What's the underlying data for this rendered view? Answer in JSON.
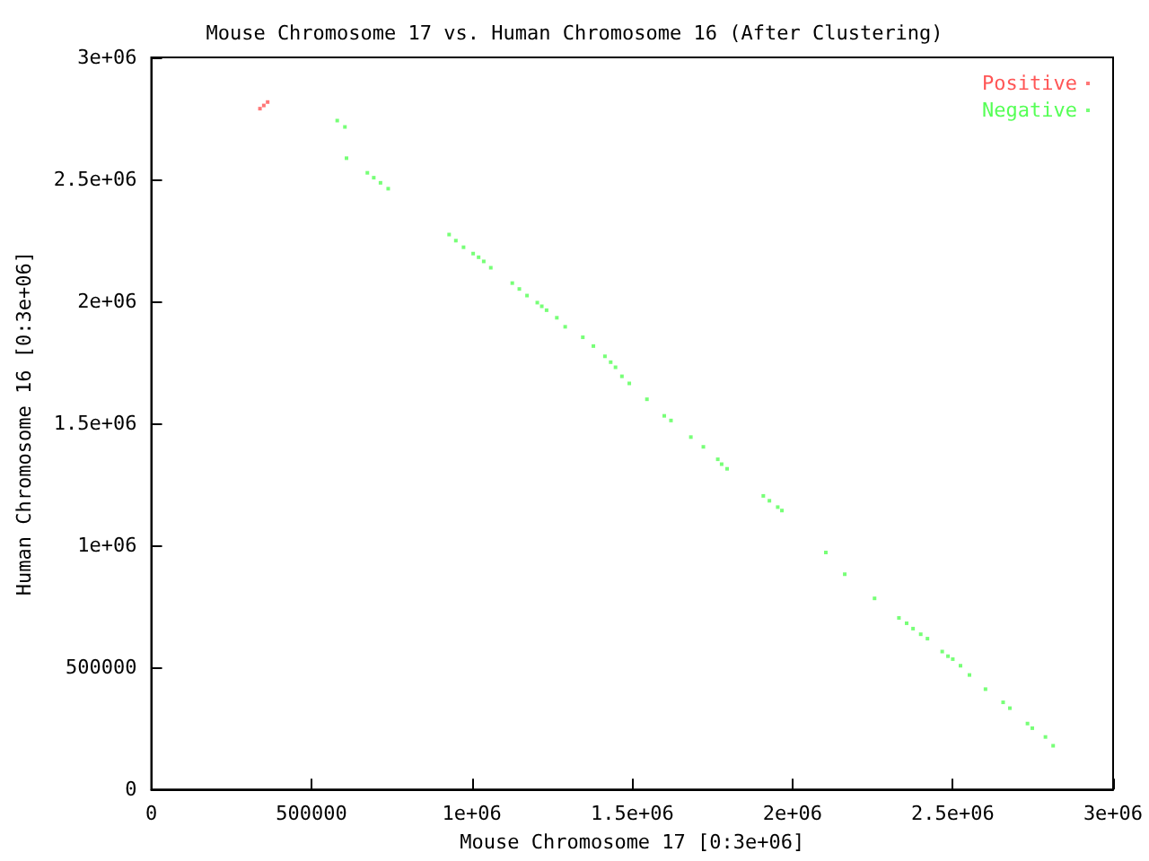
{
  "chart_data": {
    "type": "scatter",
    "title": "Mouse Chromosome 17 vs. Human Chromosome 16 (After Clustering)",
    "xlabel": "Mouse Chromosome 17 [0:3e+06]",
    "ylabel": "Human Chromosome 16 [0:3e+06]",
    "xlim": [
      0,
      3000000
    ],
    "ylim": [
      0,
      3000000
    ],
    "xticks": [
      0,
      500000,
      {
        "value": 1000000,
        "label": "1e+06"
      },
      {
        "value": 1500000,
        "label": "1.5e+06"
      },
      {
        "value": 2000000,
        "label": "2e+06"
      },
      {
        "value": 2500000,
        "label": "2.5e+06"
      },
      {
        "value": 3000000,
        "label": "3e+06"
      }
    ],
    "yticks": [
      0,
      500000,
      {
        "value": 1000000,
        "label": "1e+06"
      },
      {
        "value": 1500000,
        "label": "1.5e+06"
      },
      {
        "value": 2000000,
        "label": "2e+06"
      },
      {
        "value": 2500000,
        "label": "2.5e+06"
      },
      {
        "value": 3000000,
        "label": "3e+06"
      }
    ],
    "grid": false,
    "legend": "top right",
    "marker": "square",
    "series": [
      {
        "name": "Positive",
        "color": "#ff5555",
        "x": [
          339000,
          351000,
          363000
        ],
        "values": [
          2790000,
          2803000,
          2817000
        ]
      },
      {
        "name": "Negative",
        "color": "#55ff55",
        "x": [
          580000,
          604000,
          609000,
          674000,
          694000,
          715000,
          739000,
          929000,
          950000,
          974000,
          1004000,
          1021000,
          1037000,
          1059000,
          1126000,
          1148000,
          1172000,
          1204000,
          1218000,
          1233000,
          1265000,
          1291000,
          1346000,
          1379000,
          1415000,
          1433000,
          1448000,
          1468000,
          1491000,
          1546000,
          1600000,
          1621000,
          1683000,
          1722000,
          1767000,
          1779000,
          1796000,
          1909000,
          1928000,
          1954000,
          1967000,
          2104000,
          2163000,
          2256000,
          2332000,
          2356000,
          2376000,
          2400000,
          2421000,
          2467000,
          2485000,
          2500000,
          2524000,
          2552000,
          2602000,
          2657000,
          2678000,
          2733000,
          2748000,
          2789000,
          2813000
        ],
        "values": [
          2741000,
          2715000,
          2587000,
          2527000,
          2507000,
          2486000,
          2462000,
          2274000,
          2249000,
          2222000,
          2196000,
          2181000,
          2164000,
          2138000,
          2075000,
          2051000,
          2024000,
          1995000,
          1980000,
          1964000,
          1933000,
          1896000,
          1853000,
          1817000,
          1775000,
          1751000,
          1730000,
          1693000,
          1664000,
          1599000,
          1531000,
          1512000,
          1444000,
          1404000,
          1353000,
          1333000,
          1314000,
          1203000,
          1183000,
          1157000,
          1143000,
          971000,
          882000,
          783000,
          703000,
          681000,
          659000,
          636000,
          618000,
          565000,
          546000,
          534000,
          507000,
          469000,
          411000,
          357000,
          333000,
          270000,
          251000,
          215000,
          179000
        ]
      }
    ]
  }
}
